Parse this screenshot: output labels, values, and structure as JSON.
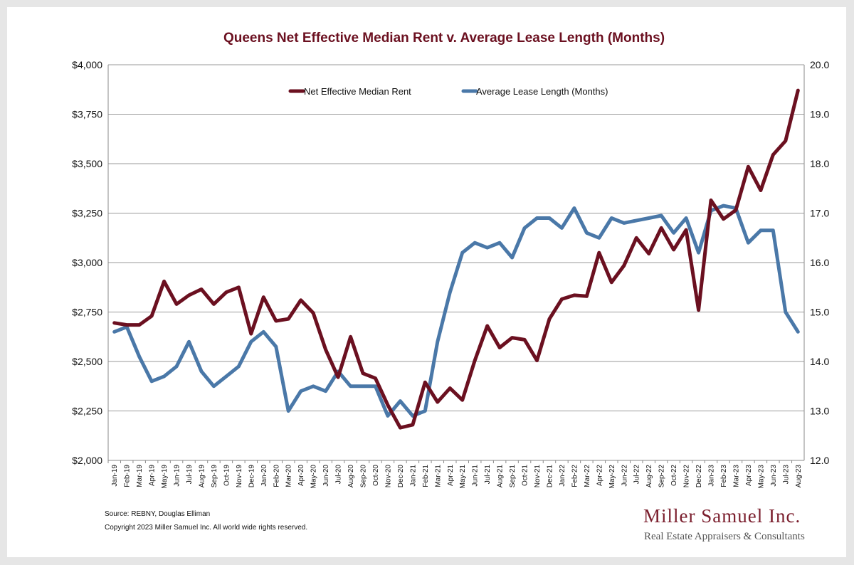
{
  "chart_data": {
    "type": "line",
    "title": "Queens Net Effective Median Rent v. Average Lease Length (Months)",
    "categories": [
      "Jan-19",
      "Feb-19",
      "Mar-19",
      "Apr-19",
      "May-19",
      "Jun-19",
      "Jul-19",
      "Aug-19",
      "Sep-19",
      "Oct-19",
      "Nov-19",
      "Dec-19",
      "Jan-20",
      "Feb-20",
      "Mar-20",
      "Apr-20",
      "May-20",
      "Jun-20",
      "Jul-20",
      "Aug-20",
      "Sep-20",
      "Oct-20",
      "Nov-20",
      "Dec-20",
      "Jan-21",
      "Feb-21",
      "Mar-21",
      "Apr-21",
      "May-21",
      "Jun-21",
      "Jul-21",
      "Aug-21",
      "Sep-21",
      "Oct-21",
      "Nov-21",
      "Dec-21",
      "Jan-22",
      "Feb-22",
      "Mar-22",
      "Apr-22",
      "May-22",
      "Jun-22",
      "Jul-22",
      "Aug-22",
      "Sep-22",
      "Oct-22",
      "Nov-22",
      "Dec-22",
      "Jan-23",
      "Feb-23",
      "Mar-23",
      "Apr-23",
      "May-23",
      "Jun-23",
      "Jul-23",
      "Aug-23"
    ],
    "series": [
      {
        "name": "Net Effective Median Rent",
        "axis": "left",
        "color": "#6b1020",
        "values": [
          2695,
          2685,
          2685,
          2730,
          2905,
          2790,
          2835,
          2865,
          2790,
          2850,
          2875,
          2640,
          2825,
          2705,
          2715,
          2810,
          2745,
          2560,
          2420,
          2625,
          2440,
          2415,
          2280,
          2165,
          2180,
          2395,
          2295,
          2365,
          2305,
          2505,
          2680,
          2570,
          2620,
          2610,
          2505,
          2715,
          2815,
          2835,
          2830,
          3050,
          2900,
          2985,
          3125,
          3045,
          3175,
          3065,
          3165,
          2760,
          3315,
          3220,
          3265,
          3485,
          3365,
          3545,
          3615,
          3870
        ]
      },
      {
        "name": "Average Lease Length (Months)",
        "axis": "right",
        "color": "#4a78a8",
        "values": [
          14.6,
          14.7,
          14.1,
          13.6,
          13.7,
          13.9,
          14.4,
          13.8,
          13.5,
          13.7,
          13.9,
          14.4,
          14.6,
          14.3,
          13.0,
          13.4,
          13.5,
          13.4,
          13.8,
          13.5,
          13.5,
          13.5,
          12.9,
          13.2,
          12.9,
          13.0,
          14.4,
          15.4,
          16.2,
          16.4,
          16.3,
          16.4,
          16.1,
          16.7,
          16.9,
          16.9,
          16.7,
          17.1,
          16.6,
          16.5,
          16.9,
          16.8,
          16.85,
          16.9,
          16.95,
          16.6,
          16.9,
          16.2,
          17.05,
          17.15,
          17.1,
          16.4,
          16.65,
          16.65,
          15.0,
          14.6
        ]
      }
    ],
    "yleft": {
      "min": 2000,
      "max": 4000,
      "step": 250,
      "tick_labels": [
        "$2,000",
        "$2,250",
        "$2,500",
        "$2,750",
        "$3,000",
        "$3,250",
        "$3,500",
        "$3,750",
        "$4,000"
      ]
    },
    "yright": {
      "min": 12,
      "max": 20,
      "step": 1,
      "tick_labels": [
        "12.0",
        "13.0",
        "14.0",
        "15.0",
        "16.0",
        "17.0",
        "18.0",
        "19.0",
        "20.0"
      ]
    },
    "grid": true,
    "legend": "top-center",
    "xlabel": "",
    "ylabel": ""
  },
  "footer": {
    "source": "Source: REBNY, Douglas Elliman",
    "copyright": "Copyright 2023 Miller Samuel Inc.  All world wide rights reserved."
  },
  "logo": {
    "name": "Miller Samuel Inc.",
    "tagline": "Real Estate Appraisers & Consultants"
  }
}
